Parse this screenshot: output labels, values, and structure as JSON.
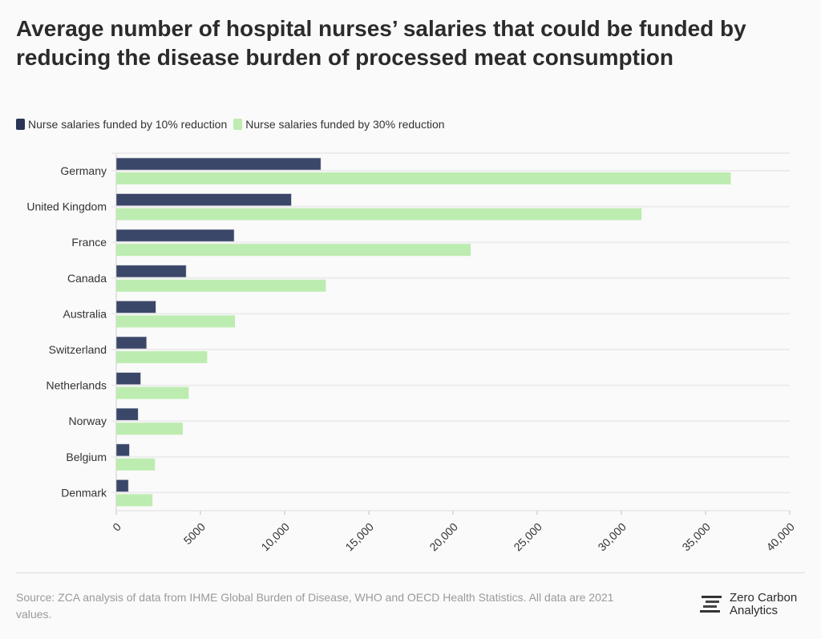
{
  "colors": {
    "series10": "#3b4768",
    "series30": "#bdecb0",
    "grid": "#ececec"
  },
  "chart_data": {
    "type": "bar",
    "orientation": "horizontal",
    "title": "Average number of hospital nurses’ salaries that could be funded by reducing the disease burden of processed meat consumption",
    "categories": [
      "Germany",
      "United Kingdom",
      "France",
      "Canada",
      "Australia",
      "Switzerland",
      "Netherlands",
      "Norway",
      "Belgium",
      "Denmark"
    ],
    "series": [
      {
        "name": "Nurse salaries funded by 10% reduction",
        "values": [
          12150,
          10400,
          7000,
          4150,
          2350,
          1800,
          1450,
          1300,
          780,
          720
        ]
      },
      {
        "name": "Nurse salaries funded by 30% reduction",
        "values": [
          36500,
          31200,
          21050,
          12450,
          7050,
          5400,
          4300,
          3950,
          2300,
          2150
        ]
      }
    ],
    "xlim": [
      0,
      40000
    ],
    "xticks": [
      0,
      5000,
      10000,
      15000,
      20000,
      25000,
      30000,
      35000,
      40000
    ],
    "xtick_labels": [
      "0",
      "5000",
      "10,000",
      "15,000",
      "20,000",
      "25,000",
      "30,000",
      "35,000",
      "40,000"
    ],
    "xlabel": "",
    "ylabel": "",
    "grid": true,
    "legend": "top-left"
  },
  "footer": {
    "source": "Source: ZCA analysis of data from IHME Global Burden of Disease, WHO and OECD Health Statistics. All data are 2021 values.",
    "logo_line1": "Zero Carbon",
    "logo_line2": "Analytics"
  }
}
